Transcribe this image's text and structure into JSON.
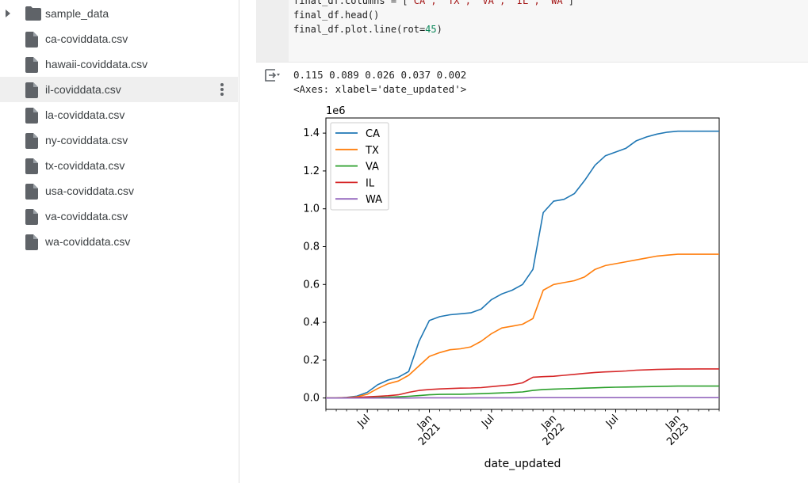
{
  "sidebar": {
    "items": [
      {
        "label": "sample_data",
        "type": "folder",
        "expandable": true,
        "selected": false
      },
      {
        "label": "ca-coviddata.csv",
        "type": "file",
        "selected": false
      },
      {
        "label": "hawaii-coviddata.csv",
        "type": "file",
        "selected": false
      },
      {
        "label": "il-coviddata.csv",
        "type": "file",
        "selected": true
      },
      {
        "label": "la-coviddata.csv",
        "type": "file",
        "selected": false
      },
      {
        "label": "ny-coviddata.csv",
        "type": "file",
        "selected": false
      },
      {
        "label": "tx-coviddata.csv",
        "type": "file",
        "selected": false
      },
      {
        "label": "usa-coviddata.csv",
        "type": "file",
        "selected": false
      },
      {
        "label": "va-coviddata.csv",
        "type": "file",
        "selected": false
      },
      {
        "label": "wa-coviddata.csv",
        "type": "file",
        "selected": false
      }
    ]
  },
  "code": {
    "line1_prefix": "final_df.columns = [",
    "line1_strings": "'CA', 'TX', 'VA', 'IL', 'WA'",
    "line1_suffix": "]",
    "line2": "final_df.head()",
    "line3_prefix": "final_df.plot.line(rot=",
    "line3_num": "45",
    "line3_suffix": ")"
  },
  "output": {
    "values_line": "0.115 0.089 0.026 0.037 0.002",
    "axes_line": "<Axes: xlabel='date_updated'>",
    "icon": "output-options-icon"
  },
  "chart_data": {
    "type": "line",
    "xlabel": "date_updated",
    "ylabel": "",
    "y_offset_label": "1e6",
    "ylim": [
      -0.06,
      1.48
    ],
    "yticks": [
      "0.0",
      "0.2",
      "0.4",
      "0.6",
      "0.8",
      "1.0",
      "1.2",
      "1.4"
    ],
    "xticks": [
      "Jul",
      "Jan\n2021",
      "Jul",
      "Jan\n2022",
      "Jul",
      "Jan\n2023"
    ],
    "legend_position": "upper-left",
    "grid": false,
    "x": [
      "2020-03",
      "2020-04",
      "2020-05",
      "2020-06",
      "2020-07",
      "2020-08",
      "2020-09",
      "2020-10",
      "2020-11",
      "2020-12",
      "2021-01",
      "2021-02",
      "2021-03",
      "2021-04",
      "2021-05",
      "2021-06",
      "2021-07",
      "2021-08",
      "2021-09",
      "2021-10",
      "2021-11",
      "2021-12",
      "2022-01",
      "2022-02",
      "2022-03",
      "2022-04",
      "2022-05",
      "2022-06",
      "2022-07",
      "2022-08",
      "2022-09",
      "2022-10",
      "2022-11",
      "2022-12",
      "2023-01",
      "2023-02",
      "2023-03",
      "2023-04",
      "2023-05"
    ],
    "series": [
      {
        "name": "CA",
        "color": "#1f77b4",
        "values": [
          0.0,
          0.0,
          0.003,
          0.01,
          0.03,
          0.07,
          0.095,
          0.11,
          0.14,
          0.3,
          0.41,
          0.43,
          0.44,
          0.445,
          0.45,
          0.47,
          0.52,
          0.55,
          0.57,
          0.6,
          0.68,
          0.98,
          1.04,
          1.05,
          1.08,
          1.15,
          1.23,
          1.28,
          1.3,
          1.32,
          1.36,
          1.38,
          1.395,
          1.405,
          1.41,
          1.41,
          1.41,
          1.41,
          1.41
        ]
      },
      {
        "name": "TX",
        "color": "#ff7f0e",
        "values": [
          0.0,
          0.0,
          0.002,
          0.006,
          0.02,
          0.05,
          0.075,
          0.09,
          0.12,
          0.17,
          0.22,
          0.24,
          0.255,
          0.26,
          0.27,
          0.3,
          0.34,
          0.37,
          0.38,
          0.39,
          0.42,
          0.57,
          0.6,
          0.61,
          0.62,
          0.64,
          0.68,
          0.7,
          0.71,
          0.72,
          0.73,
          0.74,
          0.75,
          0.755,
          0.76,
          0.76,
          0.76,
          0.76,
          0.76
        ]
      },
      {
        "name": "VA",
        "color": "#2ca02c",
        "values": [
          0.0,
          0.0,
          0.0,
          0.001,
          0.002,
          0.003,
          0.004,
          0.006,
          0.009,
          0.013,
          0.017,
          0.019,
          0.02,
          0.02,
          0.021,
          0.023,
          0.025,
          0.027,
          0.029,
          0.032,
          0.04,
          0.045,
          0.047,
          0.049,
          0.05,
          0.052,
          0.054,
          0.056,
          0.057,
          0.058,
          0.059,
          0.06,
          0.061,
          0.062,
          0.063,
          0.063,
          0.063,
          0.063,
          0.063
        ]
      },
      {
        "name": "IL",
        "color": "#d62728",
        "values": [
          0.0,
          0.0,
          0.001,
          0.003,
          0.006,
          0.009,
          0.012,
          0.017,
          0.03,
          0.04,
          0.045,
          0.048,
          0.05,
          0.052,
          0.053,
          0.055,
          0.06,
          0.065,
          0.07,
          0.08,
          0.11,
          0.113,
          0.115,
          0.12,
          0.125,
          0.13,
          0.135,
          0.138,
          0.14,
          0.143,
          0.147,
          0.149,
          0.151,
          0.152,
          0.153,
          0.153,
          0.154,
          0.154,
          0.154
        ]
      },
      {
        "name": "WA",
        "color": "#9467bd",
        "values": [
          0.0,
          0.0,
          0.0,
          0.0,
          0.0,
          0.0,
          0.0,
          0.0,
          0.0,
          0.001,
          0.001,
          0.001,
          0.001,
          0.001,
          0.001,
          0.001,
          0.001,
          0.001,
          0.001,
          0.001,
          0.002,
          0.002,
          0.002,
          0.002,
          0.002,
          0.002,
          0.002,
          0.002,
          0.002,
          0.002,
          0.002,
          0.002,
          0.002,
          0.002,
          0.002,
          0.002,
          0.002,
          0.002,
          0.002
        ]
      }
    ]
  }
}
